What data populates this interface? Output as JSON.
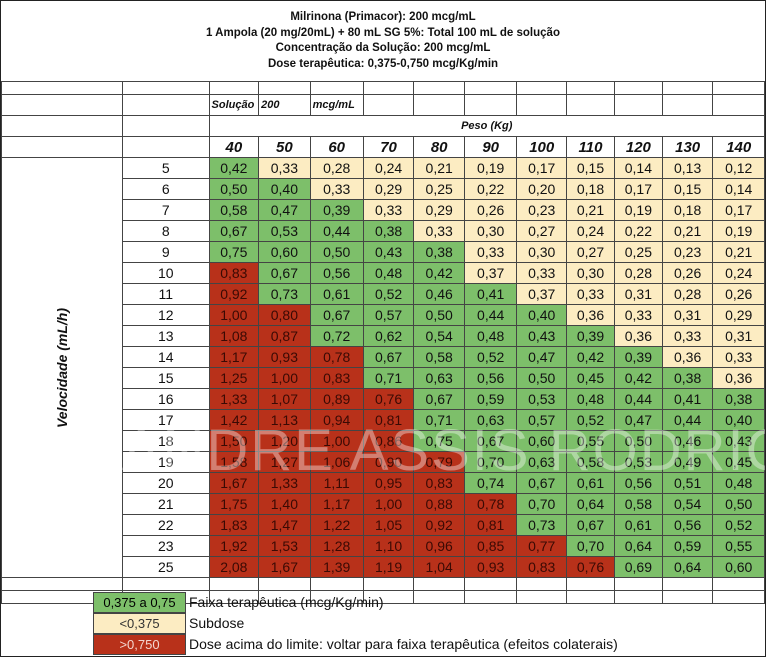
{
  "title": {
    "line1": "Milrinona (Primacor): 200 mcg/mL",
    "line2": "1 Ampola (20 mg/20mL) + 80 mL SG 5%: Total 100 mL de solução",
    "line3": "Concentração da Solução: 200 mcg/mL",
    "line4": "Dose terapêutica: 0,375-0,750 mcg/Kg/min"
  },
  "concentration_row": {
    "label": "Solução",
    "value": "200",
    "unit": "mcg/mL"
  },
  "weight_header": "Peso (Kg)",
  "velocity_label": "Velocidade (mL/h)",
  "weights": [
    "40",
    "50",
    "60",
    "70",
    "80",
    "90",
    "100",
    "110",
    "120",
    "130",
    "140"
  ],
  "colors": {
    "therapeutic": "#7dbf6a",
    "subdose": "#fcecc2",
    "overdose": "#b8311a"
  },
  "rows": [
    {
      "rate": "5",
      "cells": [
        "0,42",
        "0,33",
        "0,28",
        "0,24",
        "0,21",
        "0,19",
        "0,17",
        "0,15",
        "0,14",
        "0,13",
        "0,12"
      ]
    },
    {
      "rate": "6",
      "cells": [
        "0,50",
        "0,40",
        "0,33",
        "0,29",
        "0,25",
        "0,22",
        "0,20",
        "0,18",
        "0,17",
        "0,15",
        "0,14"
      ]
    },
    {
      "rate": "7",
      "cells": [
        "0,58",
        "0,47",
        "0,39",
        "0,33",
        "0,29",
        "0,26",
        "0,23",
        "0,21",
        "0,19",
        "0,18",
        "0,17"
      ]
    },
    {
      "rate": "8",
      "cells": [
        "0,67",
        "0,53",
        "0,44",
        "0,38",
        "0,33",
        "0,30",
        "0,27",
        "0,24",
        "0,22",
        "0,21",
        "0,19"
      ]
    },
    {
      "rate": "9",
      "cells": [
        "0,75",
        "0,60",
        "0,50",
        "0,43",
        "0,38",
        "0,33",
        "0,30",
        "0,27",
        "0,25",
        "0,23",
        "0,21"
      ]
    },
    {
      "rate": "10",
      "cells": [
        "0,83",
        "0,67",
        "0,56",
        "0,48",
        "0,42",
        "0,37",
        "0,33",
        "0,30",
        "0,28",
        "0,26",
        "0,24"
      ]
    },
    {
      "rate": "11",
      "cells": [
        "0,92",
        "0,73",
        "0,61",
        "0,52",
        "0,46",
        "0,41",
        "0,37",
        "0,33",
        "0,31",
        "0,28",
        "0,26"
      ]
    },
    {
      "rate": "12",
      "cells": [
        "1,00",
        "0,80",
        "0,67",
        "0,57",
        "0,50",
        "0,44",
        "0,40",
        "0,36",
        "0,33",
        "0,31",
        "0,29"
      ]
    },
    {
      "rate": "13",
      "cells": [
        "1,08",
        "0,87",
        "0,72",
        "0,62",
        "0,54",
        "0,48",
        "0,43",
        "0,39",
        "0,36",
        "0,33",
        "0,31"
      ]
    },
    {
      "rate": "14",
      "cells": [
        "1,17",
        "0,93",
        "0,78",
        "0,67",
        "0,58",
        "0,52",
        "0,47",
        "0,42",
        "0,39",
        "0,36",
        "0,33"
      ]
    },
    {
      "rate": "15",
      "cells": [
        "1,25",
        "1,00",
        "0,83",
        "0,71",
        "0,63",
        "0,56",
        "0,50",
        "0,45",
        "0,42",
        "0,38",
        "0,36"
      ]
    },
    {
      "rate": "16",
      "cells": [
        "1,33",
        "1,07",
        "0,89",
        "0,76",
        "0,67",
        "0,59",
        "0,53",
        "0,48",
        "0,44",
        "0,41",
        "0,38"
      ]
    },
    {
      "rate": "17",
      "cells": [
        "1,42",
        "1,13",
        "0,94",
        "0,81",
        "0,71",
        "0,63",
        "0,57",
        "0,52",
        "0,47",
        "0,44",
        "0,40"
      ]
    },
    {
      "rate": "18",
      "cells": [
        "1,50",
        "1,20",
        "1,00",
        "0,86",
        "0,75",
        "0,67",
        "0,60",
        "0,55",
        "0,50",
        "0,46",
        "0,43"
      ]
    },
    {
      "rate": "19",
      "cells": [
        "1,58",
        "1,27",
        "1,06",
        "0,90",
        "0,79",
        "0,70",
        "0,63",
        "0,58",
        "0,53",
        "0,49",
        "0,45"
      ]
    },
    {
      "rate": "20",
      "cells": [
        "1,67",
        "1,33",
        "1,11",
        "0,95",
        "0,83",
        "0,74",
        "0,67",
        "0,61",
        "0,56",
        "0,51",
        "0,48"
      ]
    },
    {
      "rate": "21",
      "cells": [
        "1,75",
        "1,40",
        "1,17",
        "1,00",
        "0,88",
        "0,78",
        "0,70",
        "0,64",
        "0,58",
        "0,54",
        "0,50"
      ]
    },
    {
      "rate": "22",
      "cells": [
        "1,83",
        "1,47",
        "1,22",
        "1,05",
        "0,92",
        "0,81",
        "0,73",
        "0,67",
        "0,61",
        "0,56",
        "0,52"
      ]
    },
    {
      "rate": "23",
      "cells": [
        "1,92",
        "1,53",
        "1,28",
        "1,10",
        "0,96",
        "0,85",
        "0,77",
        "0,70",
        "0,64",
        "0,59",
        "0,55"
      ]
    },
    {
      "rate": "25",
      "cells": [
        "2,08",
        "1,67",
        "1,39",
        "1,19",
        "1,04",
        "0,93",
        "0,83",
        "0,76",
        "0,69",
        "0,64",
        "0,60"
      ]
    }
  ],
  "legend": [
    {
      "swatch": "0,375 a 0,75",
      "text": "Faixa terapêutica (mcg/Kg/min)",
      "color": "therapeutic"
    },
    {
      "swatch": "<0,375",
      "text": "Subdose",
      "color": "subdose"
    },
    {
      "swatch": ">0,750",
      "text": "Dose acima do limite: voltar para faixa terapêutica (efeitos colaterais)",
      "color": "overdose"
    }
  ],
  "watermark": "DR. ANDRE ASSIS RODRIGUES"
}
